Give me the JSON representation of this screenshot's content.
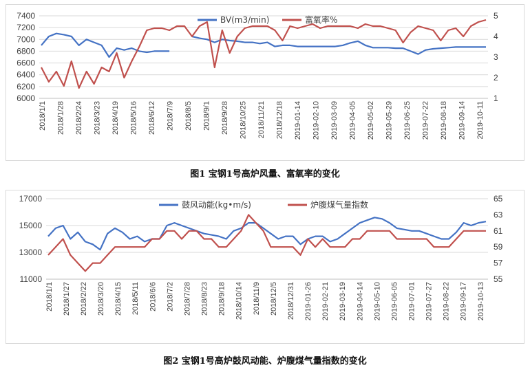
{
  "captions": {
    "fig1": "图1 宝钢1号高炉风量、富氧率的变化",
    "fig2": "图2 宝钢1号高炉鼓风动能、炉腹煤气量指数的变化"
  },
  "chart_data": [
    {
      "type": "line",
      "legend_position": "top",
      "grid": "horizontal",
      "x_tick_labels": [
        "2018/1/1",
        "2018/1/28",
        "2018/2/24",
        "2018/3/23",
        "2018/4/19",
        "2018/5/16",
        "2018/6/12",
        "2018/7/9",
        "2018/8/5",
        "2018/9/1",
        "2018/9/28",
        "2018/10/25",
        "2018/11/21",
        "2018/12/18",
        "2019-01-14",
        "2019-02-10",
        "2019-03-09",
        "2019-04-05",
        "2019-05-02",
        "2019-05-29",
        "2019-06-25",
        "2019-07-22",
        "2019-08-18",
        "2019-09-14",
        "2019-10-11"
      ],
      "y_left": {
        "min": 6000,
        "max": 7400,
        "ticks": [
          "6000",
          "6200",
          "6400",
          "6600",
          "6800",
          "7000",
          "7200",
          "7400"
        ]
      },
      "y_right": {
        "min": 1,
        "max": 5,
        "ticks": [
          "1",
          "2",
          "3",
          "4",
          "5"
        ]
      },
      "series": [
        {
          "name": "BV(m3/min)",
          "axis": "left",
          "color": "#4472c4",
          "values": [
            6900,
            7050,
            7100,
            7080,
            7050,
            6900,
            7000,
            6950,
            6900,
            6700,
            6850,
            6820,
            6850,
            6800,
            6780,
            6800,
            6800,
            6800,
            null,
            null,
            7050,
            7020,
            7000,
            6950,
            7000,
            6980,
            6970,
            6950,
            6950,
            6930,
            6950,
            6880,
            6900,
            6900,
            6880,
            6880,
            6880,
            6880,
            6880,
            6880,
            6900,
            6940,
            6970,
            6900,
            6860,
            6860,
            6860,
            6850,
            6850,
            6800,
            6750,
            6820,
            6840,
            6850,
            6860,
            6870,
            6870,
            6870,
            6870,
            6870
          ]
        },
        {
          "name": "富氧率%",
          "axis": "right",
          "color": "#c0504d",
          "values": [
            2.5,
            1.8,
            2.3,
            1.6,
            2.8,
            1.5,
            2.3,
            1.7,
            2.5,
            2.3,
            3.2,
            2.0,
            2.8,
            3.5,
            4.3,
            4.4,
            4.4,
            4.3,
            4.5,
            4.5,
            4.0,
            4.5,
            4.7,
            2.5,
            4.3,
            3.2,
            4.0,
            4.4,
            4.5,
            4.5,
            4.5,
            4.3,
            3.8,
            4.5,
            4.4,
            4.5,
            4.6,
            4.4,
            4.5,
            4.5,
            4.5,
            4.5,
            4.4,
            4.6,
            4.5,
            4.5,
            4.4,
            4.3,
            3.7,
            4.2,
            4.5,
            4.4,
            4.3,
            3.8,
            4.3,
            4.4,
            4.0,
            4.5,
            4.7,
            4.8
          ]
        }
      ]
    },
    {
      "type": "line",
      "legend_position": "top",
      "grid": "horizontal",
      "x_tick_labels": [
        "2018/1/1",
        "2018/1/27",
        "2018/2/22",
        "2018/3/20",
        "2018/4/15",
        "2018/5/11",
        "2018/6/6",
        "2018/7/2",
        "2018/7/28",
        "2018/8/23",
        "2018/9/18",
        "2018/10/14",
        "2018/11/9",
        "2018/12/5",
        "2018/12/31",
        "2019-01-26",
        "2019-02-21",
        "2019-03-19",
        "2019-04-14",
        "2019-05-10",
        "2019-06-05",
        "2019-07-01",
        "2019-07-27",
        "2019-08-22",
        "2019-09-17",
        "2019-10-13"
      ],
      "y_left": {
        "min": 11000,
        "max": 17000,
        "ticks": [
          "11000",
          "13000",
          "15000",
          "17000"
        ]
      },
      "y_right": {
        "min": 55,
        "max": 65,
        "ticks": [
          "55",
          "57",
          "59",
          "61",
          "63",
          "65"
        ]
      },
      "series": [
        {
          "name": "鼓风动能(kg•m/s)",
          "axis": "left",
          "color": "#4472c4",
          "values": [
            14200,
            14800,
            15000,
            14000,
            14500,
            13800,
            13600,
            13200,
            14400,
            14800,
            14500,
            14000,
            14200,
            13800,
            14000,
            14000,
            15000,
            15200,
            15000,
            14800,
            14600,
            14400,
            14300,
            14200,
            14000,
            14600,
            14800,
            15200,
            15200,
            14800,
            14400,
            14000,
            14200,
            14200,
            13600,
            14000,
            14200,
            14200,
            13800,
            14000,
            14400,
            14800,
            15200,
            15400,
            15600,
            15500,
            15200,
            14800,
            14700,
            14600,
            14600,
            14400,
            14200,
            14000,
            14000,
            14500,
            15200,
            15000,
            15200,
            15300
          ]
        },
        {
          "name": "炉腹煤气量指数",
          "axis": "right",
          "color": "#c0504d",
          "values": [
            58,
            59,
            60,
            58,
            57,
            56,
            57,
            57,
            58,
            59,
            59,
            59,
            59,
            59,
            60,
            60,
            61,
            61,
            60,
            61,
            61,
            60,
            60,
            59,
            59,
            60,
            61,
            63,
            62,
            61,
            59,
            59,
            59,
            59,
            58,
            60,
            59,
            60,
            59,
            59,
            59,
            60,
            60,
            61,
            61,
            61,
            61,
            60,
            60,
            60,
            60,
            60,
            59,
            59,
            59,
            60,
            61,
            61,
            61,
            61
          ]
        }
      ]
    }
  ]
}
